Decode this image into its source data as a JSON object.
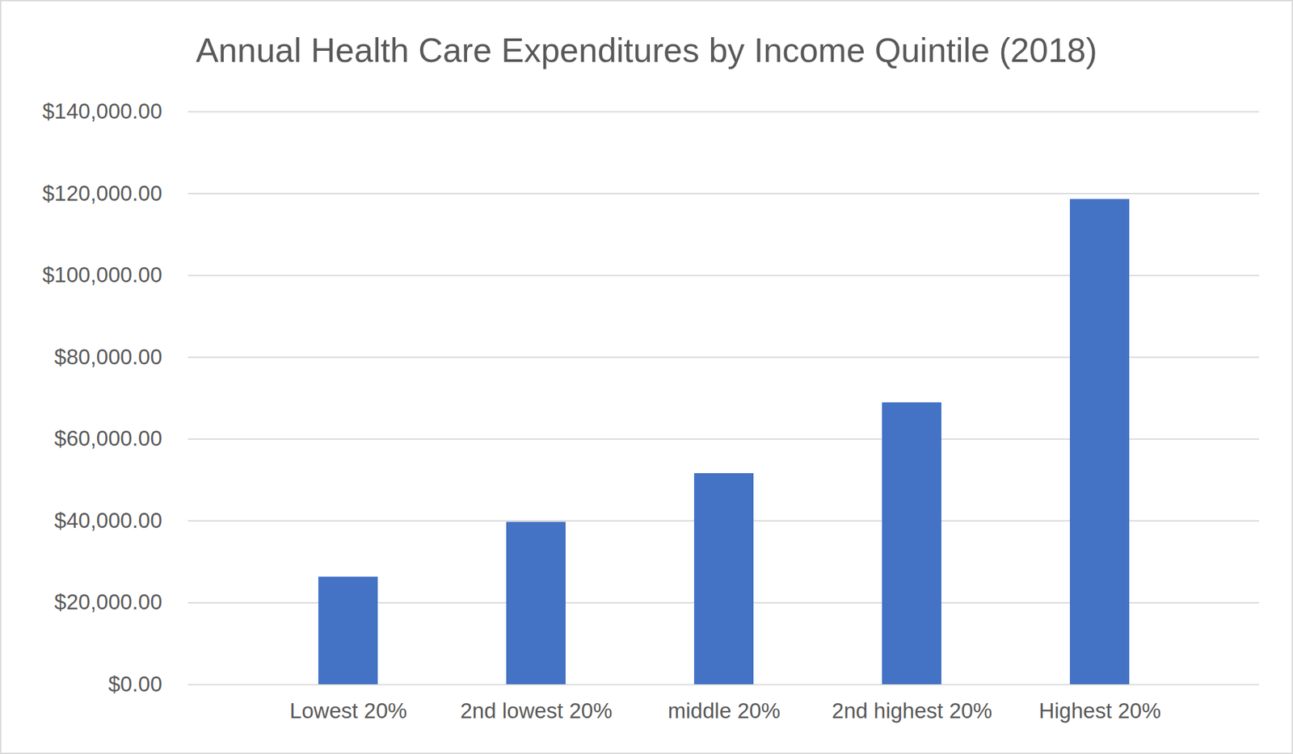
{
  "chart_data": {
    "type": "bar",
    "title": "Annual Health Care Expenditures by Income Quintile (2018)",
    "categories": [
      "Lowest 20%",
      "2nd lowest 20%",
      "middle 20%",
      "2nd highest 20%",
      "Highest 20%"
    ],
    "values": [
      26300,
      39700,
      51600,
      68900,
      118600
    ],
    "color": "#4472c4",
    "ylim": [
      0,
      140000
    ],
    "yticks": [
      {
        "value": 0,
        "label": "$0.00"
      },
      {
        "value": 20000,
        "label": "$20,000.00"
      },
      {
        "value": 40000,
        "label": "$40,000.00"
      },
      {
        "value": 60000,
        "label": "$60,000.00"
      },
      {
        "value": 80000,
        "label": "$80,000.00"
      },
      {
        "value": 100000,
        "label": "$100,000.00"
      },
      {
        "value": 120000,
        "label": "$120,000.00"
      },
      {
        "value": 140000,
        "label": "$140,000.00"
      }
    ],
    "grid": true
  }
}
